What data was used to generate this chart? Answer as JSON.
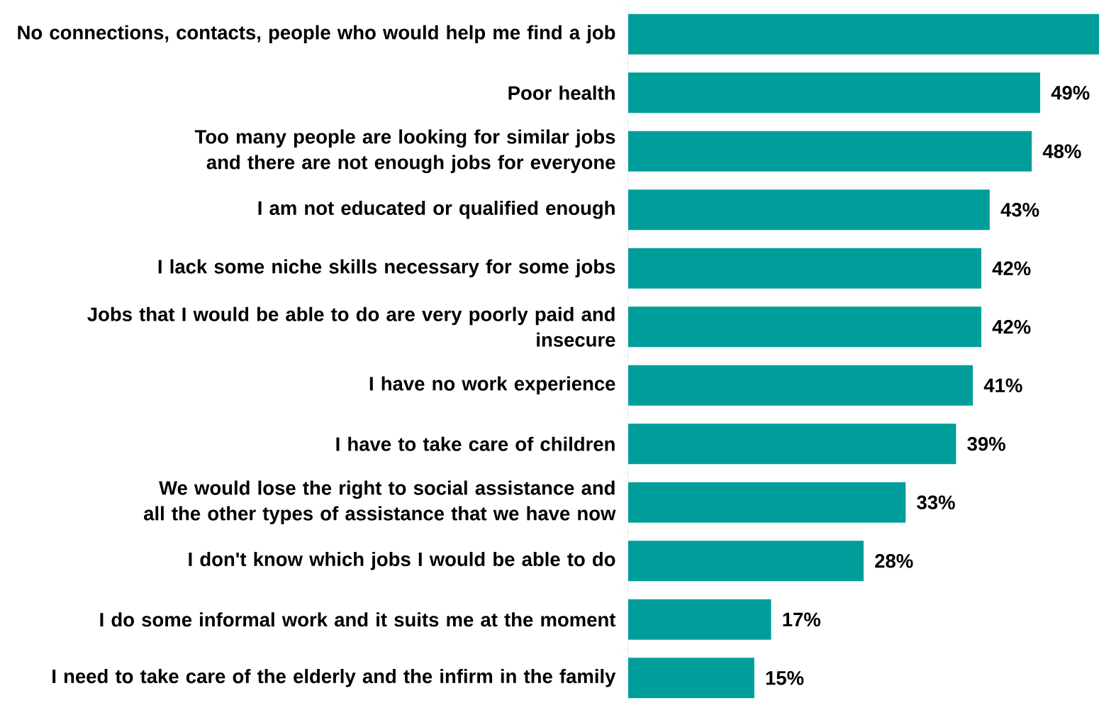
{
  "chart_data": {
    "type": "bar",
    "orientation": "horizontal",
    "color": "#009e9b",
    "categories": [
      "No connections, contacts, people who would help me find a job",
      "Poor health",
      "Too many people are looking for similar jobs and there are not enough jobs for everyone",
      "I am not educated or qualified enough",
      "I lack some niche skills necessary for some jobs",
      "Jobs that I would be able to do are very poorly paid and insecure",
      "I have no work experience",
      "I have to take care of children",
      "We would lose the right to social assistance and all the other types of assistance that we have now",
      "I don't know which jobs I would be able to do",
      "I do some informal work and it suits me at the moment",
      "I need to take care of the elderly and the infirm in the family"
    ],
    "values": [
      56,
      49,
      48,
      43,
      42,
      42,
      41,
      39,
      33,
      28,
      17,
      15
    ],
    "value_labels": [
      null,
      "49%",
      "48%",
      "43%",
      "42%",
      "42%",
      "41%",
      "39%",
      "33%",
      "28%",
      "17%",
      "15%"
    ]
  }
}
